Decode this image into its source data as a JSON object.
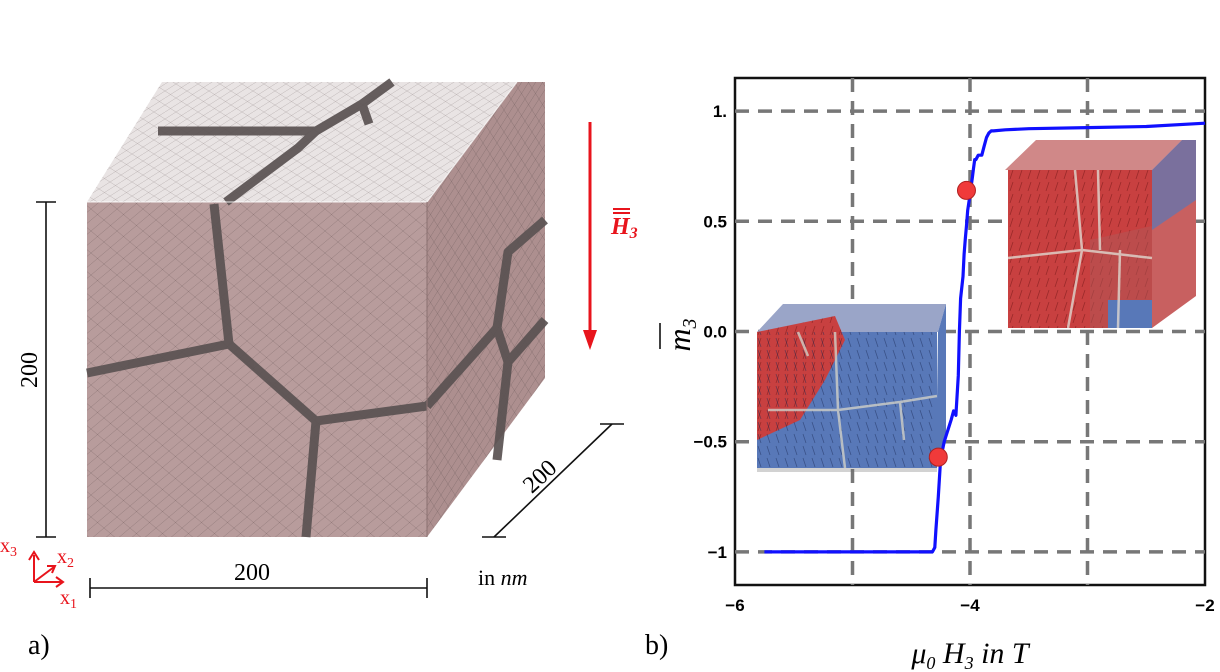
{
  "panel_a": {
    "label": "a)",
    "dim_height": "200",
    "dim_width": "200",
    "dim_depth": "200",
    "unit_prefix": "in ",
    "unit": "nm",
    "field_symbol": "H",
    "field_subscript": "3",
    "axes": {
      "x3": {
        "base": "x",
        "sub": "3"
      },
      "x2": {
        "base": "x",
        "sub": "2"
      },
      "x1": {
        "base": "x",
        "sub": "1"
      }
    },
    "colors": {
      "cube_front": "#b89c9c",
      "cube_top": "#e9e4e4",
      "cube_side": "#ad8f8f",
      "grain_boundary": "#5a5252",
      "field_arrow": "#e8141c"
    }
  },
  "panel_b": {
    "label": "b)",
    "colors": {
      "curve": "#1010ff",
      "markers": "#f03a3a",
      "grid": "#777777",
      "inset_red": "#c84040",
      "inset_blue": "#5878b8"
    }
  },
  "chart_data": {
    "type": "line",
    "title": "",
    "xlabel": {
      "mu": "μ",
      "mu_sub": "0",
      "H": "H",
      "H_sub": "3",
      "rest": "in T"
    },
    "ylabel": {
      "symbol": "m",
      "sub": "3"
    },
    "xlim": [
      -6,
      -2
    ],
    "ylim": [
      -1.15,
      1.15
    ],
    "x_ticks": [
      -6,
      -4,
      -2
    ],
    "x_tick_labels": [
      "−6",
      "−4",
      "−2"
    ],
    "x_gridlines": [
      -5,
      -4,
      -3
    ],
    "y_ticks": [
      -1,
      -0.5,
      0,
      0.5,
      1
    ],
    "y_tick_labels": [
      "−1",
      "−0.5",
      "0.0",
      "0.5",
      "1."
    ],
    "grid": true,
    "series": [
      {
        "x": [
          -5.75,
          -5.0,
          -4.5,
          -4.32,
          -4.3,
          -4.29,
          -4.27,
          -4.25,
          -4.22,
          -4.19,
          -4.16,
          -4.14,
          -4.12,
          -4.1,
          -4.09,
          -4.08,
          -4.06,
          -4.05,
          -4.04,
          -4.03,
          -4.02,
          -4.0,
          -3.99,
          -3.98,
          -3.97,
          -3.96,
          -3.95,
          -3.93,
          -3.9,
          -3.88,
          -3.86,
          -3.84,
          -3.82,
          -3.8,
          -3.7,
          -3.5,
          -3.0,
          -2.5,
          -2.0
        ],
        "y": [
          -1.0,
          -1.0,
          -1.0,
          -1.0,
          -0.98,
          -0.9,
          -0.75,
          -0.58,
          -0.5,
          -0.45,
          -0.4,
          -0.36,
          -0.38,
          -0.2,
          0.0,
          0.15,
          0.25,
          0.35,
          0.42,
          0.48,
          0.55,
          0.62,
          0.66,
          0.7,
          0.74,
          0.78,
          0.78,
          0.8,
          0.8,
          0.84,
          0.88,
          0.9,
          0.91,
          0.91,
          0.915,
          0.92,
          0.925,
          0.93,
          0.945
        ]
      }
    ],
    "markers": [
      {
        "x": -4.27,
        "y": -0.57
      },
      {
        "x": -4.03,
        "y": 0.64
      }
    ]
  }
}
